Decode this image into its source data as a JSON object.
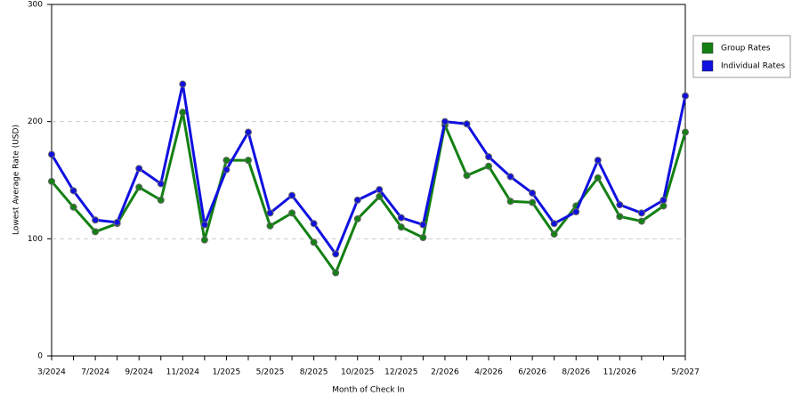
{
  "chart_data": {
    "type": "line",
    "x_label": "Month of Check In",
    "y_label": "Lowest Average Rate (USD)",
    "categories": [
      "3/2024",
      null,
      "7/2024",
      null,
      "9/2024",
      null,
      "11/2024",
      null,
      "1/2025",
      null,
      "5/2025",
      null,
      "8/2025",
      null,
      "10/2025",
      null,
      "12/2025",
      null,
      "2/2026",
      null,
      "4/2026",
      null,
      "6/2026",
      null,
      "8/2026",
      null,
      "11/2026",
      null,
      null,
      "5/2027"
    ],
    "series": [
      {
        "name": "Group Rates",
        "color": "#138013",
        "values": [
          149,
          127,
          106,
          113,
          144,
          133,
          208,
          99,
          167,
          167,
          111,
          122,
          97,
          71,
          117,
          136,
          110,
          101,
          197,
          154,
          162,
          132,
          131,
          104,
          128,
          152,
          119,
          115,
          128,
          191
        ]
      },
      {
        "name": "Individual Rates",
        "color": "#1010e0",
        "values": [
          172,
          141,
          116,
          114,
          160,
          147,
          232,
          112,
          159,
          191,
          122,
          137,
          113,
          87,
          133,
          142,
          118,
          112,
          200,
          198,
          170,
          153,
          139,
          113,
          123,
          167,
          129,
          122,
          133,
          222
        ]
      }
    ],
    "ylim": [
      0,
      300
    ],
    "yticks": [
      0,
      100,
      200,
      300
    ],
    "grid": true,
    "legend": "right"
  }
}
